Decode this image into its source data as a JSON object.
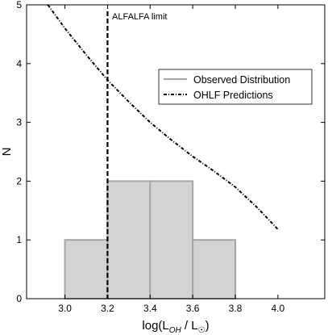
{
  "chart_data": {
    "type": "bar",
    "subtype": "histogram-with-curve",
    "xlabel": "log(L",
    "xlabel_sub": "OH",
    "xlabel_mid": " / L",
    "xlabel_sun": "☉",
    "xlabel_end": ")",
    "ylabel": "N",
    "xlim": [
      2.82,
      4.22
    ],
    "ylim": [
      0,
      5
    ],
    "x_ticks": [
      3.0,
      3.2,
      3.4,
      3.6,
      3.8,
      4.0
    ],
    "x_tick_labels": [
      "3.0",
      "3.2",
      "3.4",
      "3.6",
      "3.8",
      "4.0"
    ],
    "y_ticks": [
      0,
      1,
      2,
      3,
      4,
      5
    ],
    "y_tick_labels": [
      "0",
      "1",
      "2",
      "3",
      "4",
      "5"
    ],
    "histogram": {
      "name": "Observed Distribution",
      "bins": [
        {
          "x0": 3.0,
          "x1": 3.2,
          "count": 1
        },
        {
          "x0": 3.2,
          "x1": 3.4,
          "count": 2
        },
        {
          "x0": 3.4,
          "x1": 3.6,
          "count": 2
        },
        {
          "x0": 3.6,
          "x1": 3.8,
          "count": 1
        }
      ],
      "fill_color": "#d3d3d3",
      "edge_color": "#a6a6a6"
    },
    "curve": {
      "name": "OHLF Predictions",
      "style": "dash-dot",
      "color": "#000000",
      "points": [
        [
          2.9,
          5.1
        ],
        [
          3.0,
          4.6
        ],
        [
          3.1,
          4.15
        ],
        [
          3.2,
          3.72
        ],
        [
          3.3,
          3.35
        ],
        [
          3.4,
          3.0
        ],
        [
          3.5,
          2.7
        ],
        [
          3.6,
          2.42
        ],
        [
          3.7,
          2.17
        ],
        [
          3.8,
          1.9
        ],
        [
          3.9,
          1.56
        ],
        [
          4.0,
          1.18
        ]
      ]
    },
    "vline": {
      "x": 3.2,
      "style": "dashed",
      "label": "ALFALFA limit"
    },
    "legend": {
      "placement": "upper-right",
      "entries": [
        "Observed Distribution",
        "OHLF Predictions"
      ]
    },
    "grid": false
  }
}
